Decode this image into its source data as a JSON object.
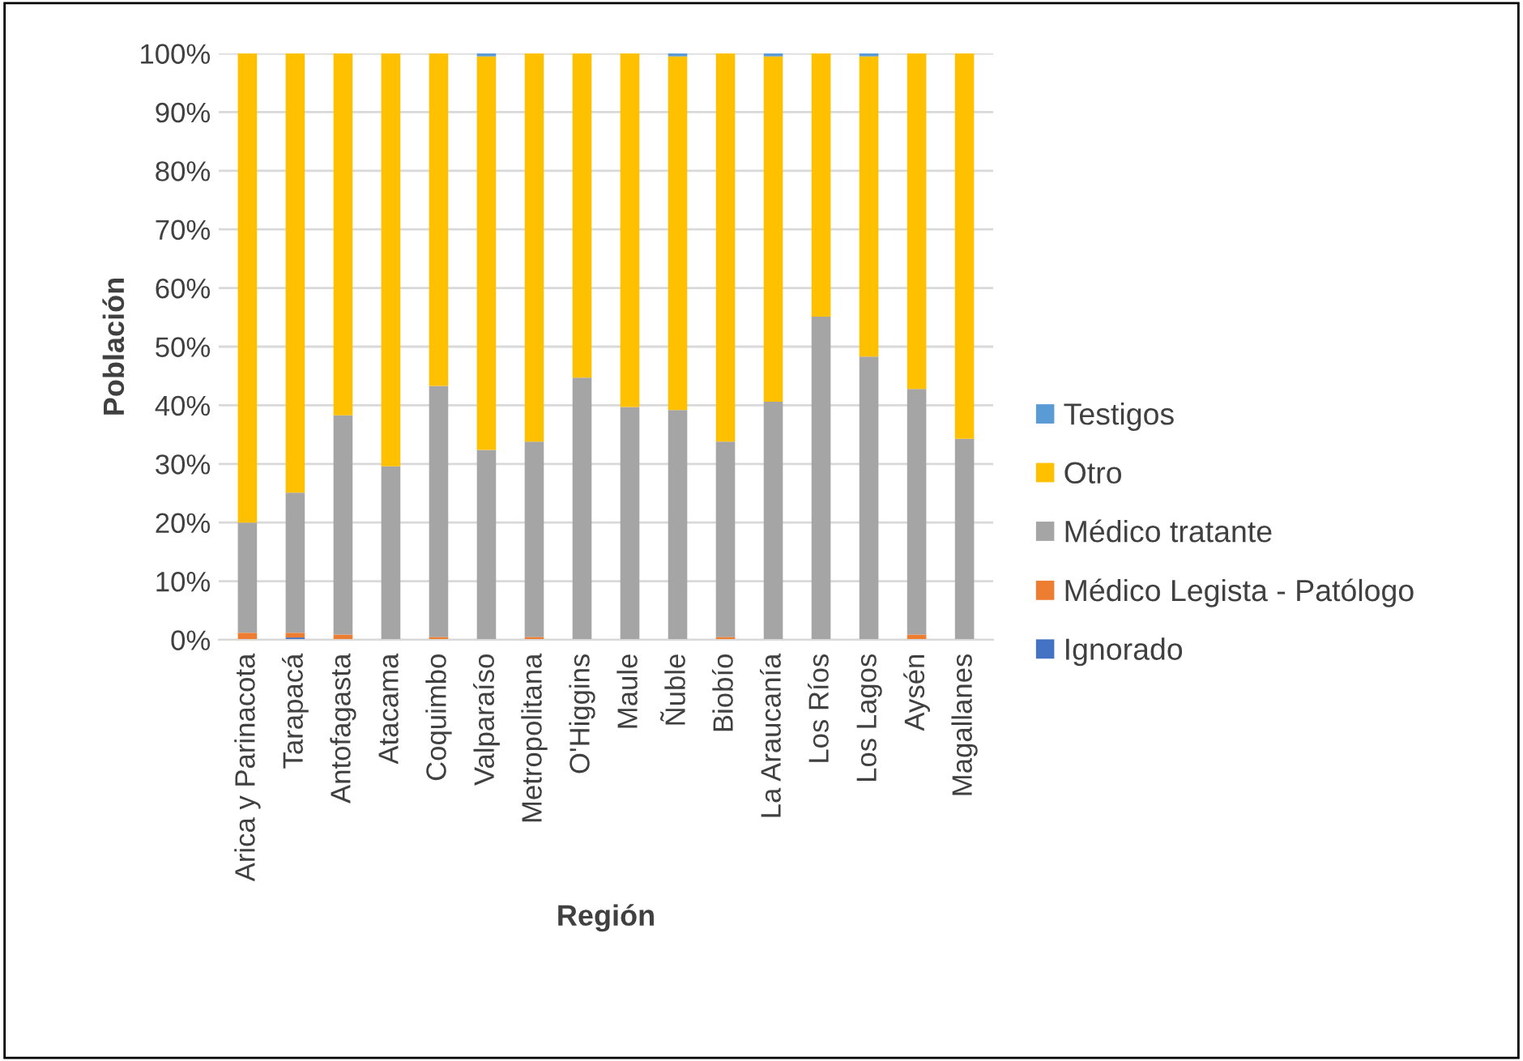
{
  "chart_data": {
    "type": "bar",
    "stacked": true,
    "xlabel": "Región",
    "ylabel": "Población",
    "categories": [
      "Arica y Parinacota",
      "Tarapacá",
      "Antofagasta",
      "Atacama",
      "Coquimbo",
      "Valparaíso",
      "Metropolitana",
      "O'Higgins",
      "Maule",
      "Ñuble",
      "Biobío",
      "La Araucanía",
      "Los Ríos",
      "Los Lagos",
      "Aysén",
      "Magallanes"
    ],
    "series": [
      {
        "name": "Ignorado",
        "color": "#4472c4",
        "values": [
          0,
          0.4,
          0,
          0,
          0,
          0,
          0,
          0,
          0,
          0,
          0,
          0,
          0,
          0,
          0,
          0
        ]
      },
      {
        "name": "Médico Legista - Patólogo",
        "color": "#ed7d31",
        "values": [
          1.2,
          0.8,
          0.9,
          0,
          0.5,
          0,
          0.5,
          0,
          0,
          0,
          0.5,
          0,
          0,
          0,
          0.9,
          0
        ]
      },
      {
        "name": "Médico tratante",
        "color": "#a5a5a5",
        "values": [
          18.8,
          23.9,
          37.4,
          29.6,
          42.8,
          32.4,
          33.3,
          44.7,
          39.7,
          39.2,
          33.3,
          40.6,
          55.1,
          48.3,
          41.9,
          34.3
        ]
      },
      {
        "name": "Otro",
        "color": "#ffc000",
        "values": [
          80.0,
          74.9,
          61.7,
          70.4,
          56.7,
          67.1,
          66.2,
          55.3,
          60.3,
          60.3,
          66.2,
          58.9,
          44.9,
          51.2,
          57.2,
          65.7
        ]
      },
      {
        "name": "Testigos",
        "color": "#5b9bd5",
        "values": [
          0,
          0,
          0,
          0,
          0,
          0.5,
          0,
          0,
          0,
          0.5,
          0,
          0.5,
          0,
          0.5,
          0,
          0
        ]
      }
    ],
    "ylim": [
      0,
      100
    ],
    "yticks": [
      {
        "value": 0,
        "label": "0%"
      },
      {
        "value": 10,
        "label": "10%"
      },
      {
        "value": 20,
        "label": "20%"
      },
      {
        "value": 30,
        "label": "30%"
      },
      {
        "value": 40,
        "label": "40%"
      },
      {
        "value": 50,
        "label": "50%"
      },
      {
        "value": 60,
        "label": "60%"
      },
      {
        "value": 70,
        "label": "70%"
      },
      {
        "value": 80,
        "label": "80%"
      },
      {
        "value": 90,
        "label": "90%"
      },
      {
        "value": 100,
        "label": "100%"
      }
    ],
    "grid": "y",
    "legend": "right"
  }
}
